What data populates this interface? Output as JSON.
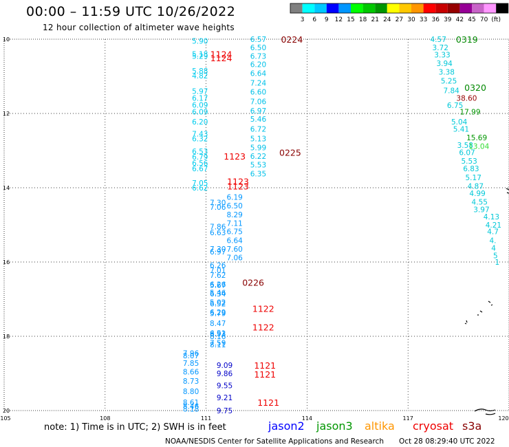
{
  "header": {
    "title": "00:00 – 11:59 UTC 10/26/2022",
    "subtitle": "12 hour collection of altimeter wave heights"
  },
  "legend": {
    "labels": [
      "3",
      "6",
      "9",
      "12",
      "15",
      "18",
      "21",
      "24",
      "27",
      "30",
      "33",
      "36",
      "39",
      "42",
      "45",
      "70",
      "(ft)"
    ],
    "colors": [
      "#808080",
      "#00ffff",
      "#00c8ff",
      "#0000ff",
      "#0096ff",
      "#00ff00",
      "#00c800",
      "#009600",
      "#ffff00",
      "#ffc800",
      "#ff9600",
      "#ff0000",
      "#c80000",
      "#960000",
      "#960096",
      "#c864c8",
      "#ff96ff",
      "#000000"
    ]
  },
  "axes": {
    "lon_labels": [
      "105",
      "108",
      "111",
      "114",
      "117",
      "120"
    ],
    "lat_labels": [
      "10",
      "12",
      "14",
      "16",
      "18",
      "20"
    ],
    "lon_range": [
      105,
      120
    ],
    "lat_range": [
      10,
      20
    ]
  },
  "tracks": [
    {
      "points": [
        {
          "lat": 10.05,
          "val": "5.90"
        },
        {
          "lat": 10.4,
          "val": "5.18"
        },
        {
          "lat": 10.45,
          "val": "5.29"
        },
        {
          "lat": 10.85,
          "val": "5.88"
        },
        {
          "lat": 10.98,
          "val": "4.82"
        },
        {
          "lat": 11.4,
          "val": "5.97"
        },
        {
          "lat": 11.58,
          "val": "6.17"
        },
        {
          "lat": 11.77,
          "val": "6.09"
        },
        {
          "lat": 11.95,
          "val": "6.09"
        },
        {
          "lat": 12.22,
          "val": "6.20"
        },
        {
          "lat": 12.55,
          "val": "7.43"
        },
        {
          "lat": 12.68,
          "val": "6.32"
        },
        {
          "lat": 13.02,
          "val": "6.53"
        },
        {
          "lat": 13.17,
          "val": "6.79"
        },
        {
          "lat": 13.33,
          "val": "6.56"
        },
        {
          "lat": 13.48,
          "val": "6.67"
        },
        {
          "lat": 13.87,
          "val": "7.05"
        },
        {
          "lat": 14.0,
          "val": "6.62"
        }
      ],
      "lon": 110.82,
      "color": "#00ccee"
    },
    {
      "points": [
        {
          "lat": 10.0,
          "val": "6.57"
        },
        {
          "lat": 10.22,
          "val": "6.50"
        },
        {
          "lat": 10.45,
          "val": "6.73"
        },
        {
          "lat": 10.68,
          "val": "6.20"
        },
        {
          "lat": 10.92,
          "val": "6.64"
        },
        {
          "lat": 11.18,
          "val": "7.24"
        },
        {
          "lat": 11.42,
          "val": "6.60"
        },
        {
          "lat": 11.68,
          "val": "7.06"
        },
        {
          "lat": 11.93,
          "val": "6.97"
        },
        {
          "lat": 12.15,
          "val": "5.46"
        },
        {
          "lat": 12.42,
          "val": "6.72"
        },
        {
          "lat": 12.68,
          "val": "5.13"
        },
        {
          "lat": 12.92,
          "val": "5.99"
        },
        {
          "lat": 13.15,
          "val": "6.22"
        },
        {
          "lat": 13.38,
          "val": "5.53"
        },
        {
          "lat": 13.62,
          "val": "6.35"
        }
      ],
      "lon": 112.55,
      "color": "#00c0e8"
    },
    {
      "points": [
        {
          "lat": 14.25,
          "val": "6.19"
        },
        {
          "lat": 14.48,
          "val": "6.50"
        },
        {
          "lat": 14.72,
          "val": "8.29"
        },
        {
          "lat": 14.95,
          "val": "7.11"
        },
        {
          "lat": 15.18,
          "val": "6.75"
        },
        {
          "lat": 15.42,
          "val": "6.64"
        },
        {
          "lat": 15.65,
          "val": "7.60"
        },
        {
          "lat": 15.88,
          "val": "7.06"
        }
      ],
      "lon": 111.85,
      "color": "#0096ff"
    },
    {
      "points": [
        {
          "lat": 14.4,
          "val": "7.30"
        },
        {
          "lat": 14.52,
          "val": "7.06"
        },
        {
          "lat": 15.05,
          "val": "7.86"
        },
        {
          "lat": 15.2,
          "val": "6.63"
        },
        {
          "lat": 15.65,
          "val": "7.30"
        },
        {
          "lat": 15.72,
          "val": "6.97"
        },
        {
          "lat": 16.08,
          "val": "6.26"
        },
        {
          "lat": 16.22,
          "val": "7.01"
        },
        {
          "lat": 16.35,
          "val": "7.62"
        },
        {
          "lat": 16.6,
          "val": "6.26"
        },
        {
          "lat": 16.62,
          "val": "5.67"
        },
        {
          "lat": 16.85,
          "val": "6.34"
        },
        {
          "lat": 16.82,
          "val": "5.46"
        },
        {
          "lat": 17.08,
          "val": "5.02"
        },
        {
          "lat": 17.12,
          "val": "6.52"
        },
        {
          "lat": 17.35,
          "val": "6.29"
        },
        {
          "lat": 17.38,
          "val": "5.79"
        },
        {
          "lat": 17.65,
          "val": "8.47"
        },
        {
          "lat": 17.92,
          "val": "6.51"
        },
        {
          "lat": 17.93,
          "val": "8.93"
        },
        {
          "lat": 18.0,
          "val": "8.16"
        },
        {
          "lat": 18.18,
          "val": "7.59"
        },
        {
          "lat": 18.22,
          "val": "8.11"
        }
      ],
      "lon": 111.35,
      "color": "#0096ff"
    },
    {
      "points": [
        {
          "lat": 18.45,
          "val": "7.96"
        },
        {
          "lat": 18.52,
          "val": "8.07"
        },
        {
          "lat": 18.72,
          "val": "7.85"
        },
        {
          "lat": 18.95,
          "val": "8.66"
        },
        {
          "lat": 19.2,
          "val": "8.73"
        },
        {
          "lat": 19.48,
          "val": "8.80"
        },
        {
          "lat": 19.78,
          "val": "8.61"
        },
        {
          "lat": 19.88,
          "val": "8.46"
        },
        {
          "lat": 19.95,
          "val": "8.18"
        }
      ],
      "lon": 110.55,
      "color": "#0096ff"
    },
    {
      "points": [
        {
          "lat": 18.78,
          "val": "9.09"
        },
        {
          "lat": 19.0,
          "val": "9.86"
        },
        {
          "lat": 19.32,
          "val": "9.55"
        },
        {
          "lat": 19.65,
          "val": "9.21"
        },
        {
          "lat": 20.0,
          "val": "9.75"
        }
      ],
      "lon": 111.55,
      "color": "#0000c8"
    },
    {
      "points": [
        {
          "lat": 10.0,
          "val": "4.57"
        },
        {
          "lat": 10.22,
          "val": "3.72"
        },
        {
          "lat": 10.42,
          "val": "3.33"
        },
        {
          "lat": 10.65,
          "val": "3.94"
        },
        {
          "lat": 10.88,
          "val": "3.38"
        },
        {
          "lat": 11.12,
          "val": "5.25"
        },
        {
          "lat": 11.38,
          "val": "7.84"
        },
        {
          "lat": 11.78,
          "val": "6.75"
        },
        {
          "lat": 12.22,
          "val": "5.04"
        },
        {
          "lat": 12.42,
          "val": "5.41"
        },
        {
          "lat": 12.85,
          "val": "3.58"
        },
        {
          "lat": 13.05,
          "val": "6.07"
        },
        {
          "lat": 13.28,
          "val": "5.53"
        },
        {
          "lat": 13.48,
          "val": "6.83"
        },
        {
          "lat": 13.72,
          "val": "5.17"
        },
        {
          "lat": 13.95,
          "val": "4.87"
        },
        {
          "lat": 14.15,
          "val": "4.99"
        },
        {
          "lat": 14.38,
          "val": "4.55"
        },
        {
          "lat": 14.58,
          "val": "3.97"
        },
        {
          "lat": 14.78,
          "val": "4.13"
        },
        {
          "lat": 15.0,
          "val": "4.21"
        },
        {
          "lat": 15.18,
          "val": "4.7"
        },
        {
          "lat": 15.42,
          "val": "4."
        },
        {
          "lat": 15.62,
          "val": "4"
        },
        {
          "lat": 15.82,
          "val": "5"
        },
        {
          "lat": 16.0,
          "val": "1"
        }
      ],
      "lon": 117.9,
      "color": "#00c8d8"
    },
    {
      "points": [
        {
          "lat": 11.58,
          "val": "38.60"
        }
      ],
      "lon": 118.3,
      "color": "#960000"
    },
    {
      "points": [
        {
          "lat": 11.95,
          "val": "17.99"
        },
        {
          "lat": 12.65,
          "val": "15.69"
        }
      ],
      "lon": 118.3,
      "color": "#009600"
    },
    {
      "points": [
        {
          "lat": 12.88,
          "val": "13.04"
        }
      ],
      "lon": 118.3,
      "color": "#33dd33"
    }
  ],
  "time_labels": [
    {
      "text": "1124",
      "lat": 10.4,
      "lon": 111.45,
      "color": "#ee0000"
    },
    {
      "text": "1124",
      "lat": 10.5,
      "lon": 111.45,
      "color": "#ee0000"
    },
    {
      "text": "0224",
      "lat": 10.0,
      "lon": 113.55,
      "color": "#880000"
    },
    {
      "text": "0319",
      "lat": 10.0,
      "lon": 118.75,
      "color": "#008800"
    },
    {
      "text": "0320",
      "lat": 11.3,
      "lon": 119.0,
      "color": "#008800"
    },
    {
      "text": "0225",
      "lat": 13.05,
      "lon": 113.5,
      "color": "#880000"
    },
    {
      "text": "1123",
      "lat": 13.15,
      "lon": 111.85,
      "color": "#ee0000"
    },
    {
      "text": "1123",
      "lat": 13.82,
      "lon": 111.95,
      "color": "#ee0000"
    },
    {
      "text": "1123",
      "lat": 13.95,
      "lon": 111.95,
      "color": "#ee0000"
    },
    {
      "text": "0226",
      "lat": 16.55,
      "lon": 112.4,
      "color": "#880000"
    },
    {
      "text": "1122",
      "lat": 17.25,
      "lon": 112.7,
      "color": "#ee0000"
    },
    {
      "text": "1122",
      "lat": 17.75,
      "lon": 112.7,
      "color": "#ee0000"
    },
    {
      "text": "1121",
      "lat": 18.78,
      "lon": 112.75,
      "color": "#ee0000"
    },
    {
      "text": "1121",
      "lat": 19.02,
      "lon": 112.75,
      "color": "#ee0000"
    },
    {
      "text": "1121",
      "lat": 19.78,
      "lon": 112.85,
      "color": "#ee0000"
    }
  ],
  "footer": {
    "note": "note: 1) Time is in UTC; 2) SWH is in feet",
    "missions": [
      {
        "name": "jason2",
        "color": "#0000ff"
      },
      {
        "name": "jason3",
        "color": "#009600"
      },
      {
        "name": "altika",
        "color": "#ff9600"
      },
      {
        "name": "cryosat",
        "color": "#ee0000"
      },
      {
        "name": "s3a",
        "color": "#880000"
      }
    ],
    "credit": "NOAA/NESDIS Center for Satellite Applications and Research",
    "timestamp": "Oct 28 08:29:40 UTC 2022"
  }
}
